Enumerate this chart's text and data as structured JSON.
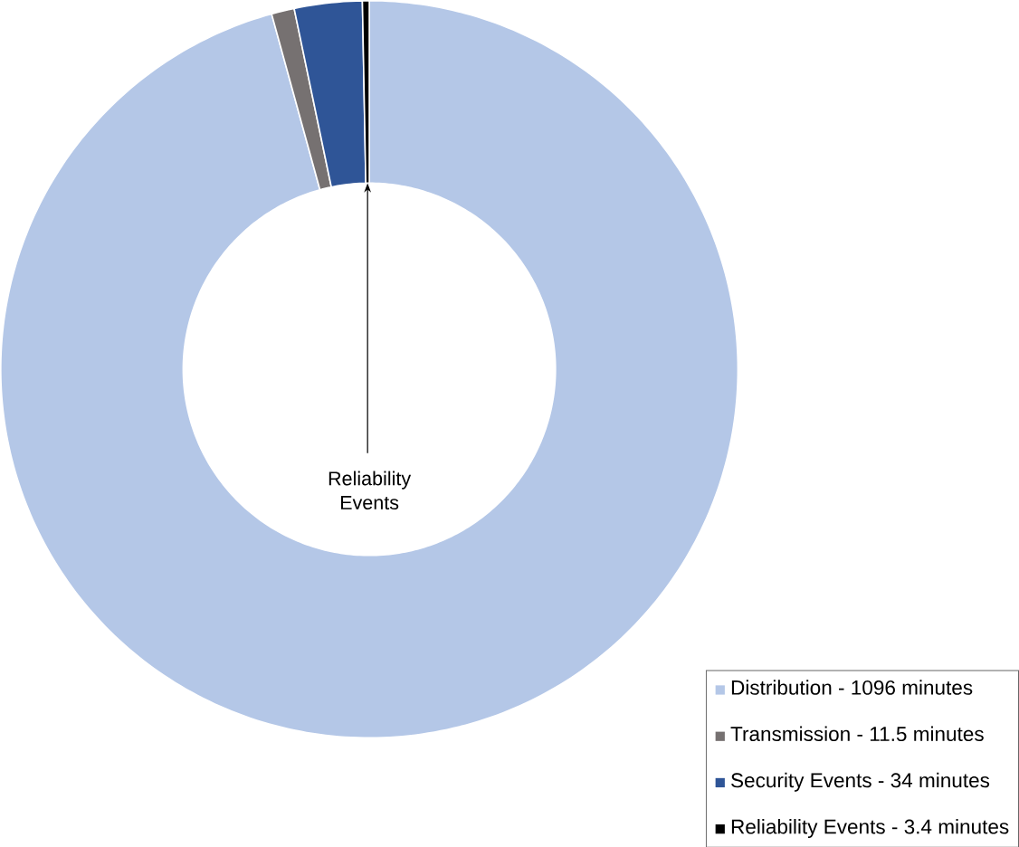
{
  "chart_data": {
    "type": "donut",
    "categories": [
      "Distribution - 1096 minutes",
      "Transmission - 11.5 minutes",
      "Security Events - 34 minutes",
      "Reliability Events - 3.4 minutes"
    ],
    "values": [
      95.73,
      1.0,
      2.97,
      0.3
    ],
    "colors": [
      "#b4c7e7",
      "#767171",
      "#2f5597",
      "#000000"
    ],
    "legend": "bottom right",
    "annotations": [
      "Reliability Events"
    ]
  }
}
